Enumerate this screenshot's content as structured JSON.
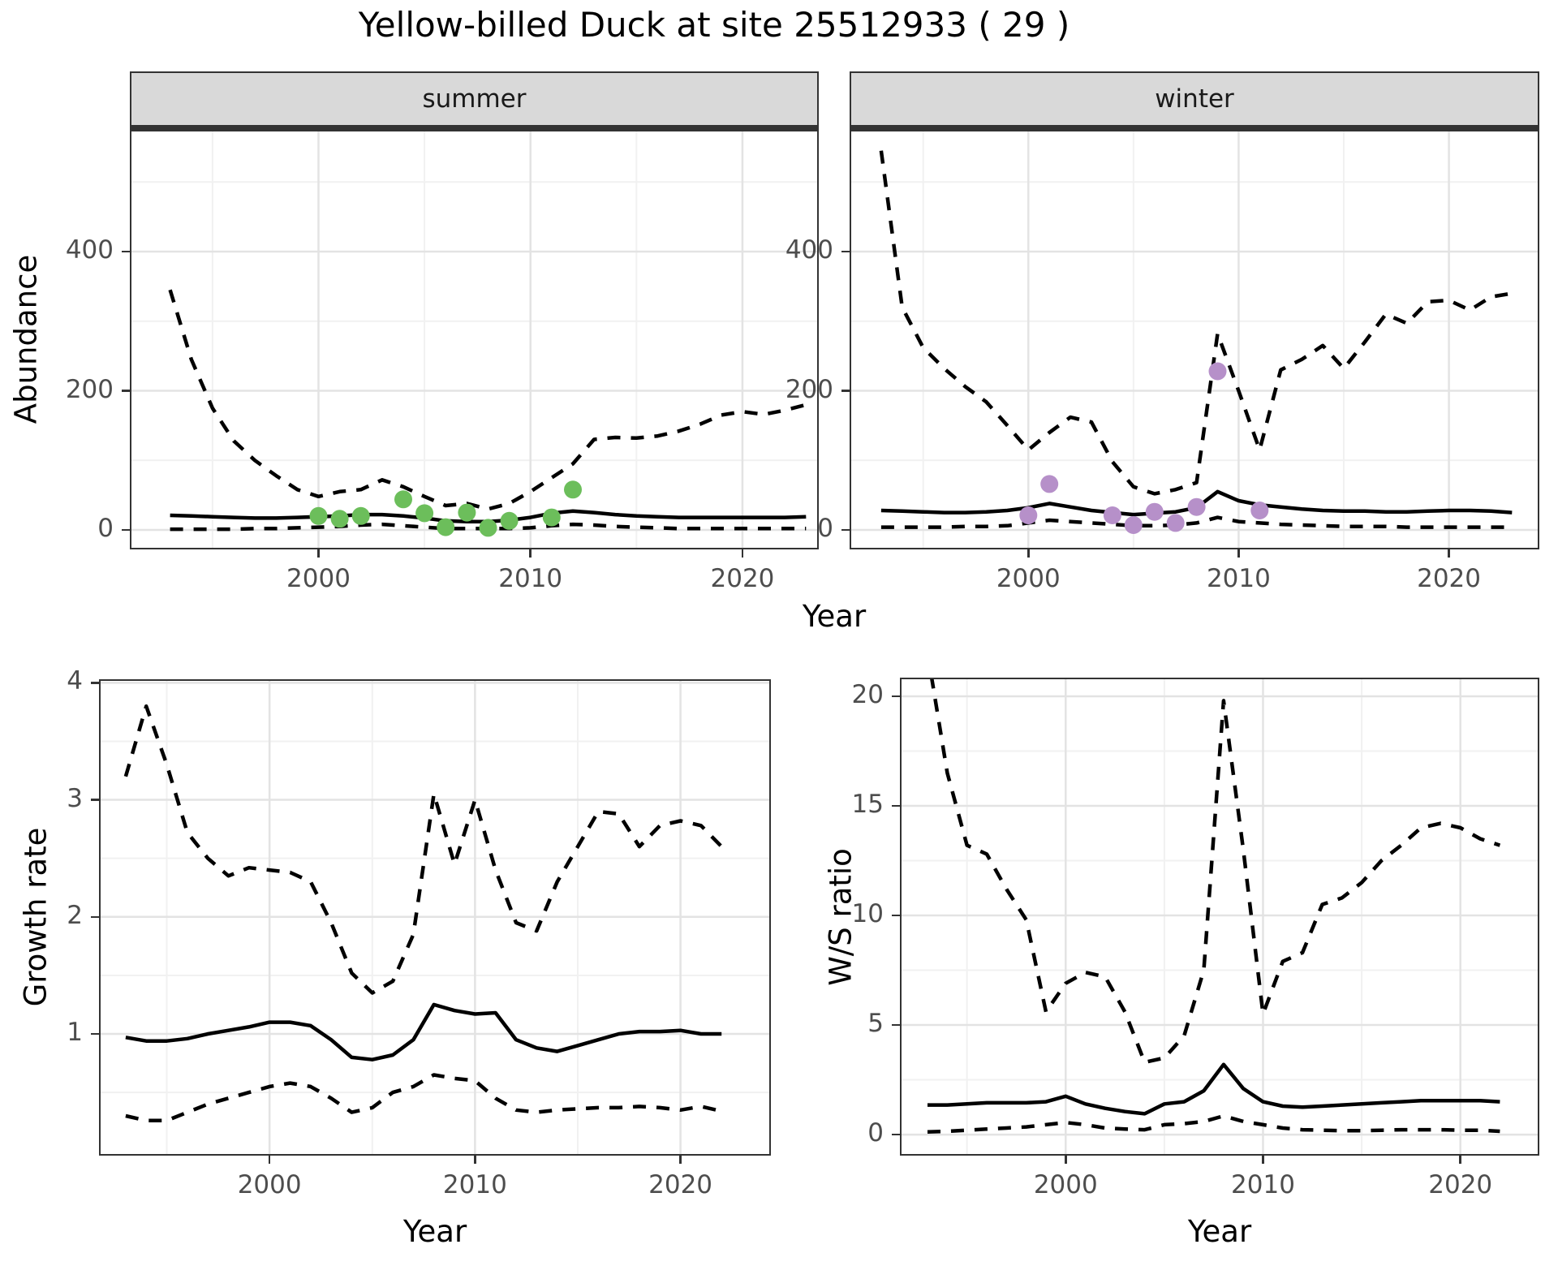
{
  "title": "Yellow-billed Duck at site 25512933 ( 29 )",
  "axes": {
    "abundance_label": "Abundance",
    "growth_label": "Growth rate",
    "ws_label": "W/S ratio",
    "year_label": "Year"
  },
  "colors": {
    "summer_points": "#6CBE5B",
    "winter_points": "#B690C9",
    "line": "#000000",
    "grid_major": "#E3E3E3",
    "grid_minor": "#F1F1F1",
    "strip_bg": "#D9D9D9",
    "panel_border": "#333333",
    "tick_text": "#4D4D4D"
  },
  "chart_data": [
    {
      "id": "abundance-summer",
      "type": "line",
      "facet_label": "summer",
      "ylabel": "Abundance",
      "xlabel": "Year",
      "x_range": [
        1991.1,
        2023.6
      ],
      "y_range": [
        -28,
        575
      ],
      "x_major_ticks": [
        2000,
        2010,
        2020
      ],
      "x_minor_ticks": [
        1995,
        2005,
        2015
      ],
      "y_major_ticks": [
        0,
        200,
        400
      ],
      "y_minor_ticks": [
        100,
        300,
        500
      ],
      "grid": true,
      "legend": "none",
      "years": [
        1993,
        1994,
        1995,
        1996,
        1997,
        1998,
        1999,
        2000,
        2001,
        2002,
        2003,
        2004,
        2005,
        2006,
        2007,
        2008,
        2009,
        2010,
        2011,
        2012,
        2013,
        2014,
        2015,
        2016,
        2017,
        2018,
        2019,
        2020,
        2021,
        2022,
        2023
      ],
      "series": [
        {
          "name": "upper_ci",
          "style": "dashed",
          "values": [
            345,
            245,
            175,
            128,
            100,
            78,
            58,
            48,
            55,
            58,
            72,
            62,
            48,
            35,
            38,
            30,
            38,
            55,
            75,
            95,
            130,
            133,
            132,
            135,
            142,
            152,
            165,
            170,
            166,
            172,
            180
          ]
        },
        {
          "name": "median",
          "style": "solid",
          "values": [
            21,
            20,
            19,
            18,
            17,
            17,
            18,
            19,
            20,
            22,
            22,
            20,
            17,
            13,
            12,
            12,
            14,
            18,
            24,
            27,
            25,
            22,
            20,
            19,
            18,
            18,
            18,
            18,
            18,
            18,
            19
          ]
        },
        {
          "name": "lower_ci",
          "style": "dashed",
          "values": [
            1,
            1,
            1,
            1,
            2,
            2,
            3,
            4,
            5,
            7,
            8,
            6,
            4,
            2,
            2,
            2,
            2,
            3,
            6,
            8,
            7,
            5,
            4,
            3,
            2,
            2,
            2,
            2,
            2,
            2,
            2
          ]
        }
      ],
      "points": {
        "name": "summer observations",
        "color_key": "summer_points",
        "data": [
          [
            2000,
            20
          ],
          [
            2001,
            16
          ],
          [
            2002,
            20
          ],
          [
            2004,
            44
          ],
          [
            2005,
            24
          ],
          [
            2006,
            4
          ],
          [
            2007,
            25
          ],
          [
            2008,
            3
          ],
          [
            2009,
            13
          ],
          [
            2011,
            18
          ],
          [
            2012,
            58
          ]
        ]
      }
    },
    {
      "id": "abundance-winter",
      "type": "line",
      "facet_label": "winter",
      "ylabel": "Abundance",
      "xlabel": "Year",
      "x_range": [
        1991.5,
        2024.3
      ],
      "y_range": [
        -28,
        575
      ],
      "x_major_ticks": [
        2000,
        2010,
        2020
      ],
      "x_minor_ticks": [
        1995,
        2005,
        2015
      ],
      "y_major_ticks": [
        0,
        200,
        400
      ],
      "y_minor_ticks": [
        100,
        300,
        500
      ],
      "grid": true,
      "legend": "none",
      "years": [
        1993,
        1994,
        1995,
        1996,
        1997,
        1998,
        1999,
        2000,
        2001,
        2002,
        2003,
        2004,
        2005,
        2006,
        2007,
        2008,
        2009,
        2010,
        2011,
        2012,
        2013,
        2014,
        2015,
        2016,
        2017,
        2018,
        2019,
        2020,
        2021,
        2022,
        2023
      ],
      "series": [
        {
          "name": "upper_ci",
          "style": "dashed",
          "values": [
            545,
            320,
            262,
            232,
            206,
            184,
            150,
            115,
            140,
            162,
            155,
            98,
            62,
            52,
            58,
            68,
            282,
            200,
            115,
            230,
            245,
            265,
            232,
            270,
            310,
            297,
            328,
            330,
            316,
            335,
            340
          ]
        },
        {
          "name": "median",
          "style": "solid",
          "values": [
            28,
            27,
            26,
            25,
            25,
            26,
            28,
            32,
            38,
            33,
            28,
            25,
            22,
            24,
            26,
            32,
            55,
            42,
            36,
            33,
            30,
            28,
            27,
            27,
            26,
            26,
            27,
            28,
            28,
            27,
            25
          ]
        },
        {
          "name": "lower_ci",
          "style": "dashed",
          "values": [
            4,
            4,
            4,
            4,
            5,
            5,
            6,
            10,
            14,
            12,
            10,
            8,
            6,
            6,
            7,
            10,
            18,
            12,
            10,
            8,
            7,
            6,
            5,
            5,
            5,
            4,
            4,
            4,
            4,
            4,
            4
          ]
        }
      ],
      "points": {
        "name": "winter observations",
        "color_key": "winter_points",
        "data": [
          [
            2000,
            21
          ],
          [
            2001,
            66
          ],
          [
            2004,
            21
          ],
          [
            2005,
            7
          ],
          [
            2006,
            26
          ],
          [
            2007,
            10
          ],
          [
            2008,
            33
          ],
          [
            2009,
            228
          ],
          [
            2011,
            28
          ]
        ]
      }
    },
    {
      "id": "growth-rate",
      "type": "line",
      "facet_label": "",
      "ylabel": "Growth rate",
      "xlabel": "Year",
      "x_range": [
        1991.7,
        2024.4
      ],
      "y_range": [
        -0.04,
        4.03
      ],
      "x_major_ticks": [
        2000,
        2010,
        2020
      ],
      "x_minor_ticks": [
        1995,
        2005,
        2015
      ],
      "y_major_ticks": [
        1,
        2,
        3,
        4
      ],
      "y_minor_ticks": [
        0.5,
        1.5,
        2.5,
        3.5
      ],
      "grid": true,
      "legend": "none",
      "years": [
        1993,
        1994,
        1995,
        1996,
        1997,
        1998,
        1999,
        2000,
        2001,
        2002,
        2003,
        2004,
        2005,
        2006,
        2007,
        2008,
        2009,
        2010,
        2011,
        2012,
        2013,
        2014,
        2015,
        2016,
        2017,
        2018,
        2019,
        2020,
        2021,
        2022
      ],
      "series": [
        {
          "name": "upper_ci",
          "style": "dashed",
          "values": [
            3.2,
            3.8,
            3.3,
            2.72,
            2.5,
            2.35,
            2.42,
            2.4,
            2.38,
            2.3,
            1.95,
            1.52,
            1.35,
            1.45,
            1.85,
            3.05,
            2.45,
            3.0,
            2.4,
            1.95,
            1.88,
            2.3,
            2.6,
            2.9,
            2.88,
            2.6,
            2.78,
            2.82,
            2.78,
            2.6
          ]
        },
        {
          "name": "median",
          "style": "solid",
          "values": [
            0.97,
            0.94,
            0.94,
            0.96,
            1.0,
            1.03,
            1.06,
            1.1,
            1.1,
            1.07,
            0.95,
            0.8,
            0.78,
            0.82,
            0.95,
            1.25,
            1.2,
            1.17,
            1.18,
            0.95,
            0.88,
            0.85,
            0.9,
            0.95,
            1.0,
            1.02,
            1.02,
            1.03,
            1.0,
            1.0
          ]
        },
        {
          "name": "lower_ci",
          "style": "dashed",
          "values": [
            0.3,
            0.26,
            0.26,
            0.33,
            0.4,
            0.45,
            0.5,
            0.55,
            0.58,
            0.55,
            0.45,
            0.33,
            0.37,
            0.5,
            0.55,
            0.65,
            0.62,
            0.6,
            0.45,
            0.35,
            0.33,
            0.35,
            0.36,
            0.37,
            0.37,
            0.38,
            0.37,
            0.35,
            0.38,
            0.34
          ]
        }
      ],
      "points": null
    },
    {
      "id": "ws-ratio",
      "type": "line",
      "facet_label": "",
      "ylabel": "W/S ratio",
      "xlabel": "Year",
      "x_range": [
        1991.6,
        2024.0
      ],
      "y_range": [
        -0.96,
        20.85
      ],
      "x_major_ticks": [
        2000,
        2010,
        2020
      ],
      "x_minor_ticks": [
        1995,
        2005,
        2015
      ],
      "y_major_ticks": [
        0,
        5,
        10,
        15,
        20
      ],
      "y_minor_ticks": [
        2.5,
        7.5,
        12.5,
        17.5
      ],
      "grid": true,
      "legend": "none",
      "years": [
        1993,
        1994,
        1995,
        1996,
        1997,
        1998,
        1999,
        2000,
        2001,
        2002,
        2003,
        2004,
        2005,
        2006,
        2007,
        2008,
        2009,
        2010,
        2011,
        2012,
        2013,
        2014,
        2015,
        2016,
        2017,
        2018,
        2019,
        2020,
        2021,
        2022
      ],
      "series": [
        {
          "name": "upper_ci",
          "style": "dashed",
          "values": [
            22,
            16.5,
            13.2,
            12.8,
            11.2,
            9.8,
            5.6,
            6.9,
            7.4,
            7.2,
            5.6,
            3.3,
            3.5,
            4.5,
            7.5,
            19.8,
            13.0,
            5.5,
            7.9,
            8.3,
            10.5,
            10.8,
            11.5,
            12.5,
            13.2,
            14.0,
            14.2,
            14.0,
            13.5,
            13.2
          ]
        },
        {
          "name": "median",
          "style": "solid",
          "values": [
            1.35,
            1.35,
            1.4,
            1.45,
            1.45,
            1.45,
            1.5,
            1.75,
            1.4,
            1.2,
            1.05,
            0.95,
            1.4,
            1.5,
            2.0,
            3.2,
            2.1,
            1.5,
            1.3,
            1.25,
            1.3,
            1.35,
            1.4,
            1.45,
            1.5,
            1.55,
            1.55,
            1.55,
            1.55,
            1.5
          ]
        },
        {
          "name": "lower_ci",
          "style": "dashed",
          "values": [
            0.12,
            0.15,
            0.2,
            0.25,
            0.3,
            0.35,
            0.45,
            0.55,
            0.45,
            0.3,
            0.25,
            0.22,
            0.45,
            0.5,
            0.6,
            0.85,
            0.6,
            0.45,
            0.3,
            0.22,
            0.2,
            0.18,
            0.18,
            0.2,
            0.22,
            0.22,
            0.22,
            0.2,
            0.2,
            0.15
          ]
        }
      ],
      "points": null
    }
  ]
}
